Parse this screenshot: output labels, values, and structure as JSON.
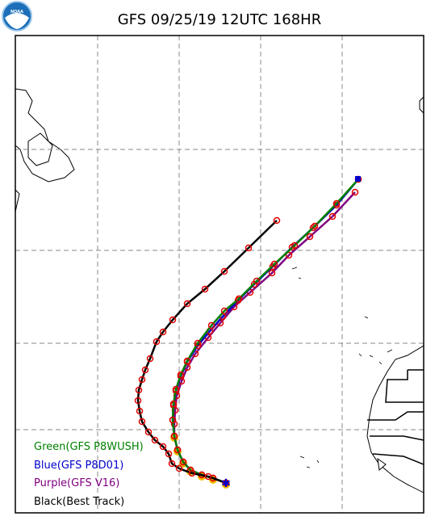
{
  "header": {
    "title": "GFS 09/25/19 12UTC 168HR",
    "logo": "NOAA"
  },
  "legend": [
    "Green(GFS P8WUSH)",
    "Blue(GFS P8D01)",
    "Purple(GFS V16)",
    "Black(Best Track)"
  ]
}
